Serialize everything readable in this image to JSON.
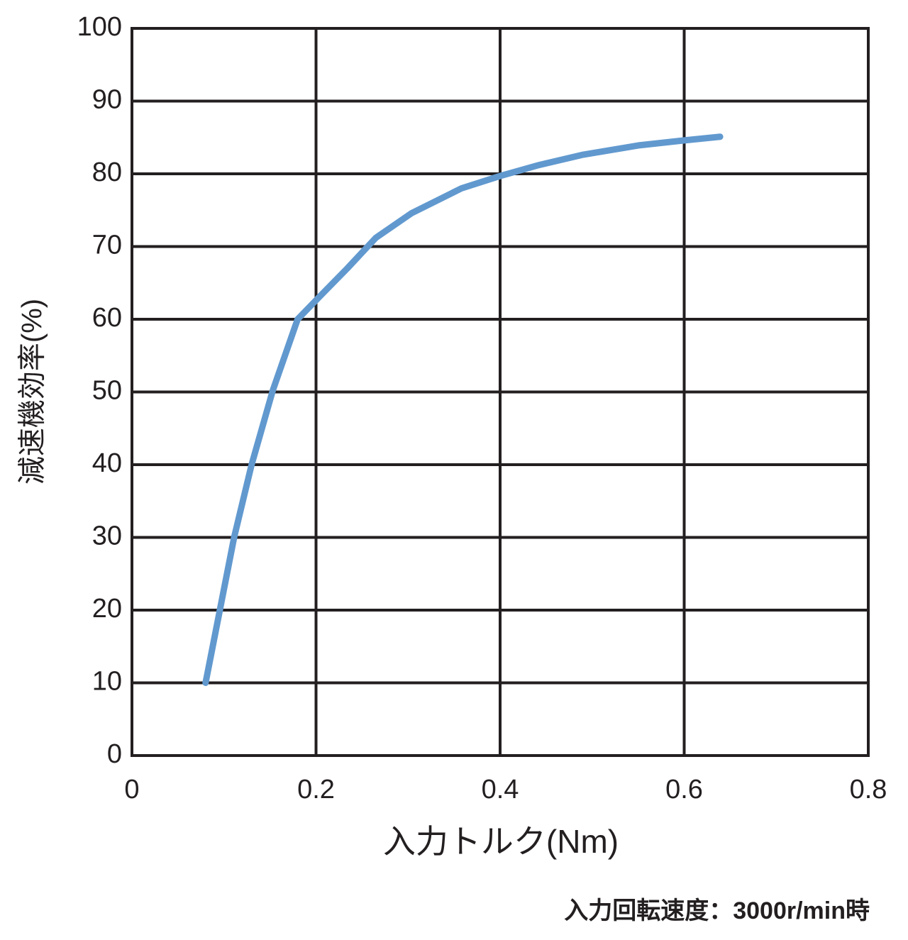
{
  "chart_data": {
    "type": "line",
    "x_label": "入力トルク(Nm)",
    "y_label": "減速機効率(%)",
    "note": "入力回転速度：3000r/min時",
    "x": [
      0.08,
      0.111,
      0.13,
      0.153,
      0.18,
      0.203,
      0.234,
      0.265,
      0.304,
      0.358,
      0.4,
      0.442,
      0.489,
      0.55,
      0.6,
      0.639
    ],
    "series": [
      {
        "color": "#6199cf",
        "values": [
          10,
          30,
          40,
          50.2,
          60,
          63,
          67,
          71.2,
          74.6,
          78,
          79.7,
          81.2,
          82.6,
          83.9,
          84.6,
          85.1
        ]
      }
    ],
    "xlim": [
      0,
      0.8
    ],
    "xticks": [
      0,
      0.2,
      0.4,
      0.6,
      0.8
    ],
    "ylim": [
      0,
      100
    ],
    "yticks": [
      0,
      10,
      20,
      30,
      40,
      50,
      60,
      70,
      80,
      90,
      100
    ],
    "grid": true
  }
}
